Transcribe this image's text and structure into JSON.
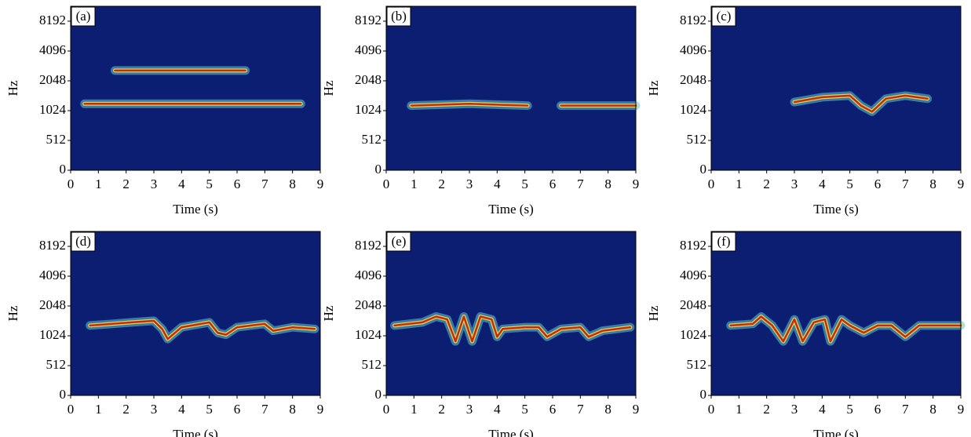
{
  "chart_data": [
    {
      "type": "spectrogram",
      "panel_label": "(a)",
      "xlabel": "Time (s)",
      "ylabel": "Hz",
      "background": "#0c1e72",
      "xlim": [
        0,
        9
      ],
      "xticks": [
        0,
        1,
        2,
        3,
        4,
        5,
        6,
        7,
        8,
        9
      ],
      "ylim": [
        0,
        11585
      ],
      "yscale": "log2",
      "yticks": [
        0,
        512,
        1024,
        2048,
        4096,
        8192
      ],
      "traces": [
        {
          "x": [
            0.5,
            8.3
          ],
          "values": [
            1200,
            1200
          ]
        },
        {
          "x": [
            1.6,
            6.3
          ],
          "values": [
            2600,
            2600
          ]
        }
      ]
    },
    {
      "type": "spectrogram",
      "panel_label": "(b)",
      "xlabel": "Time (s)",
      "ylabel": "Hz",
      "background": "#0c1e72",
      "xlim": [
        0,
        9
      ],
      "xticks": [
        0,
        1,
        2,
        3,
        4,
        5,
        6,
        7,
        8,
        9
      ],
      "ylim": [
        0,
        11585
      ],
      "yscale": "log2",
      "yticks": [
        0,
        512,
        1024,
        2048,
        4096,
        8192
      ],
      "traces": [
        {
          "x": [
            0.9,
            3.0,
            5.1
          ],
          "values": [
            1150,
            1200,
            1150
          ]
        },
        {
          "x": [
            6.3,
            9.0
          ],
          "values": [
            1150,
            1150
          ]
        }
      ]
    },
    {
      "type": "spectrogram",
      "panel_label": "(c)",
      "xlabel": "Time (s)",
      "ylabel": "Hz",
      "background": "#0c1e72",
      "xlim": [
        0,
        9
      ],
      "xticks": [
        0,
        1,
        2,
        3,
        4,
        5,
        6,
        7,
        8,
        9
      ],
      "ylim": [
        0,
        11585
      ],
      "yscale": "log2",
      "yticks": [
        0,
        512,
        1024,
        2048,
        4096,
        8192
      ],
      "traces": [
        {
          "x": [
            3.0,
            4.0,
            5.0,
            5.4,
            5.8,
            6.3,
            7.0,
            7.8
          ],
          "values": [
            1250,
            1400,
            1450,
            1150,
            1000,
            1350,
            1450,
            1350
          ]
        }
      ]
    },
    {
      "type": "spectrogram",
      "panel_label": "(d)",
      "xlabel": "Time (s)",
      "ylabel": "Hz",
      "background": "#0c1e72",
      "xlim": [
        0,
        9
      ],
      "xticks": [
        0,
        1,
        2,
        3,
        4,
        5,
        6,
        7,
        8,
        9
      ],
      "ylim": [
        0,
        11585
      ],
      "yscale": "log2",
      "yticks": [
        0,
        512,
        1024,
        2048,
        4096,
        8192
      ],
      "traces": [
        {
          "x": [
            0.7,
            1.5,
            2.2,
            3.0,
            3.3,
            3.5,
            4.0,
            5.0,
            5.3,
            5.6,
            6.0,
            7.0,
            7.3,
            8.0,
            8.8
          ],
          "values": [
            1300,
            1350,
            1400,
            1450,
            1200,
            950,
            1250,
            1400,
            1100,
            1050,
            1250,
            1350,
            1150,
            1250,
            1200
          ]
        }
      ]
    },
    {
      "type": "spectrogram",
      "panel_label": "(e)",
      "xlabel": "Time (s)",
      "ylabel": "Hz",
      "background": "#0c1e72",
      "xlim": [
        0,
        9
      ],
      "xticks": [
        0,
        1,
        2,
        3,
        4,
        5,
        6,
        7,
        8,
        9
      ],
      "ylim": [
        0,
        11585
      ],
      "yscale": "log2",
      "yticks": [
        0,
        512,
        1024,
        2048,
        4096,
        8192
      ],
      "traces": [
        {
          "x": [
            0.3,
            1.3,
            1.8,
            2.2,
            2.5,
            2.8,
            3.1,
            3.4,
            3.8,
            4.0,
            4.2,
            5.0,
            5.5,
            5.8,
            6.3,
            7.0,
            7.3,
            7.8,
            8.8
          ],
          "values": [
            1300,
            1400,
            1600,
            1500,
            900,
            1600,
            900,
            1600,
            1500,
            1000,
            1200,
            1250,
            1250,
            1000,
            1200,
            1250,
            1000,
            1150,
            1250
          ]
        }
      ]
    },
    {
      "type": "spectrogram",
      "panel_label": "(f)",
      "xlabel": "Time (s)",
      "ylabel": "Hz",
      "background": "#0c1e72",
      "xlim": [
        0,
        9
      ],
      "xticks": [
        0,
        1,
        2,
        3,
        4,
        5,
        6,
        7,
        8,
        9
      ],
      "ylim": [
        0,
        11585
      ],
      "yscale": "log2",
      "yticks": [
        0,
        512,
        1024,
        2048,
        4096,
        8192
      ],
      "traces": [
        {
          "x": [
            0.7,
            1.5,
            1.8,
            2.2,
            2.6,
            3.0,
            3.3,
            3.7,
            4.1,
            4.3,
            4.7,
            5.0,
            5.5,
            6.0,
            6.5,
            7.0,
            7.5,
            8.0,
            9.0
          ],
          "values": [
            1300,
            1350,
            1600,
            1300,
            900,
            1500,
            900,
            1400,
            1500,
            900,
            1500,
            1300,
            1100,
            1300,
            1300,
            1000,
            1300,
            1300,
            1300
          ]
        }
      ]
    }
  ]
}
